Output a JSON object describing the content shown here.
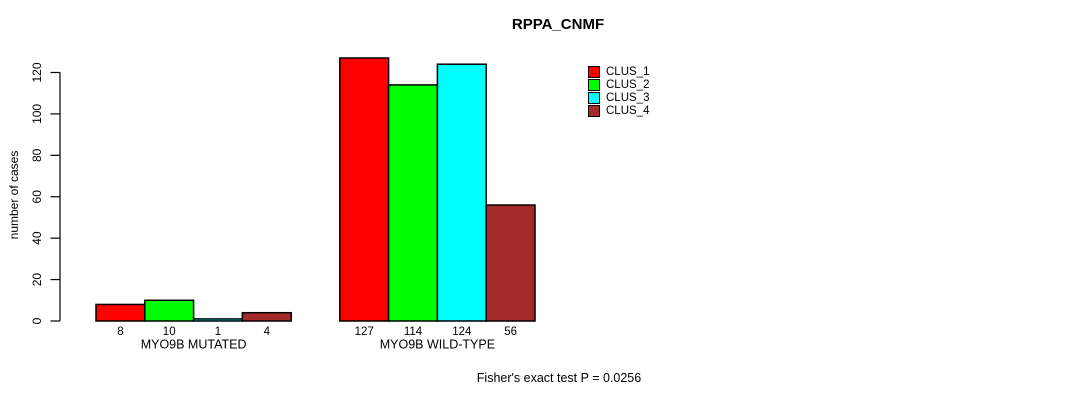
{
  "chart_data": {
    "type": "bar",
    "title": "RPPA_CNMF",
    "ylabel": "number of cases",
    "xlabel": "",
    "footnote": "Fisher's exact test P = 0.0256",
    "categories": [
      "MYO9B MUTATED",
      "MYO9B WILD-TYPE"
    ],
    "series": [
      {
        "name": "CLUS_1",
        "color": "#FF0000",
        "values": [
          8,
          127
        ]
      },
      {
        "name": "CLUS_2",
        "color": "#00FF00",
        "values": [
          10,
          114
        ]
      },
      {
        "name": "CLUS_3",
        "color": "#00FFFF",
        "values": [
          1,
          124
        ]
      },
      {
        "name": "CLUS_4",
        "color": "#A52A2A",
        "values": [
          4,
          56
        ]
      }
    ],
    "bar_value_labels": [
      [
        8,
        10,
        1,
        4
      ],
      [
        127,
        114,
        124,
        56
      ]
    ],
    "yticks": [
      0,
      20,
      40,
      60,
      80,
      100,
      120
    ],
    "ylim": [
      0,
      127
    ],
    "grid": false,
    "legend_position": "top-right",
    "axis_color": "#000000",
    "background_color": "#FFFFFF"
  }
}
